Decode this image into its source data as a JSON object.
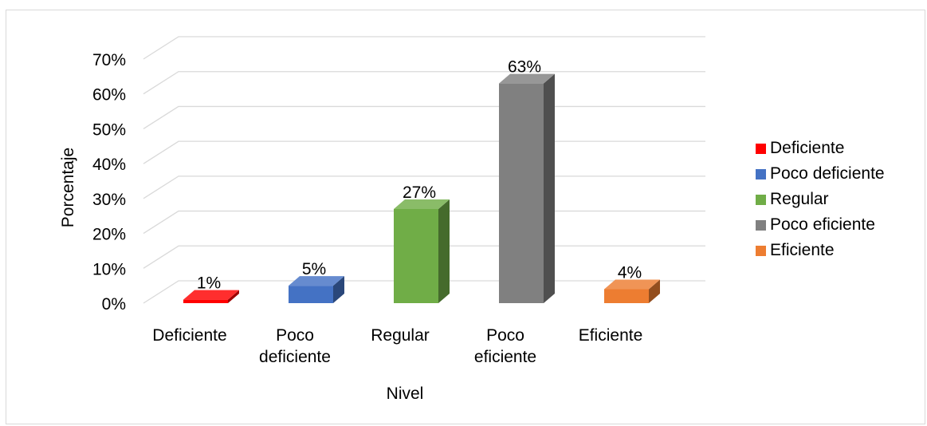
{
  "chart_data": {
    "type": "bar",
    "style": "3d-column",
    "title": "",
    "xlabel": "Nivel",
    "ylabel": "Porcentaje",
    "ylim": [
      0,
      0.7
    ],
    "yticks": [
      "0%",
      "10%",
      "20%",
      "30%",
      "40%",
      "50%",
      "60%",
      "70%"
    ],
    "grid": true,
    "legend_position": "right",
    "categories": [
      [
        "Deficiente"
      ],
      [
        "Poco",
        "deficiente"
      ],
      [
        "Regular"
      ],
      [
        "Poco",
        "eficiente"
      ],
      [
        "Eficiente"
      ]
    ],
    "values": [
      0.01,
      0.05,
      0.27,
      0.63,
      0.04
    ],
    "data_labels": [
      "1%",
      "5%",
      "27%",
      "63%",
      "4%"
    ],
    "legend": [
      "Deficiente",
      "Poco deficiente",
      "Regular",
      "Poco eficiente",
      "Eficiente"
    ],
    "colors": [
      "#ff0000",
      "#4472c4",
      "#70ad47",
      "#808080",
      "#ed7d31"
    ]
  }
}
